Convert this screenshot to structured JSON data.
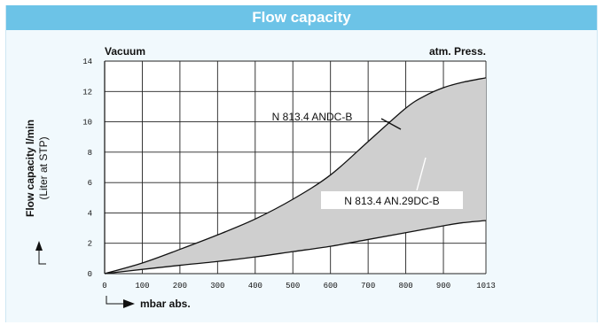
{
  "page": {
    "title": "Flow capacity",
    "header_color": "#6cc3e7",
    "panel_color": "#f1f9fd",
    "area_fill": "#cfcfcf"
  },
  "chart_data": {
    "type": "area",
    "title": "Flow capacity",
    "xlabel": "mbar abs.",
    "ylabel": "Flow capacity l/min",
    "ylabel_sub": "(Liter at STP)",
    "left_label": "Vacuum",
    "right_label": "atm. Press.",
    "x_ticks": [
      "0",
      "100",
      "200",
      "300",
      "400",
      "500",
      "600",
      "700",
      "800",
      "900",
      "1013"
    ],
    "x_tick_values": [
      0,
      100,
      200,
      300,
      400,
      500,
      600,
      700,
      800,
      900,
      1013
    ],
    "y_ticks": [
      "0",
      "2",
      "4",
      "6",
      "8",
      "10",
      "12",
      "14"
    ],
    "y_tick_values": [
      0,
      2,
      4,
      6,
      8,
      10,
      12,
      14
    ],
    "xlim": [
      0,
      1013
    ],
    "ylim": [
      0,
      14
    ],
    "grid": true,
    "series": [
      {
        "name": "N 813.4 ANDC-B",
        "x": [
          0,
          100,
          200,
          300,
          400,
          500,
          600,
          700,
          800,
          850,
          900,
          950,
          1013
        ],
        "y": [
          0,
          0.7,
          1.6,
          2.55,
          3.6,
          4.9,
          6.5,
          8.7,
          10.9,
          11.7,
          12.25,
          12.6,
          12.9
        ]
      },
      {
        "name": "N 813.4 AN.29DC-B",
        "x": [
          0,
          100,
          200,
          300,
          400,
          500,
          600,
          700,
          800,
          900,
          950,
          1013
        ],
        "y": [
          0,
          0.28,
          0.55,
          0.8,
          1.1,
          1.45,
          1.8,
          2.25,
          2.7,
          3.15,
          3.35,
          3.5
        ]
      }
    ],
    "annotations": [
      {
        "text": "N 813.4 ANDC-B",
        "series": 0
      },
      {
        "text": "N 813.4 AN.29DC-B",
        "series": 1
      }
    ]
  }
}
